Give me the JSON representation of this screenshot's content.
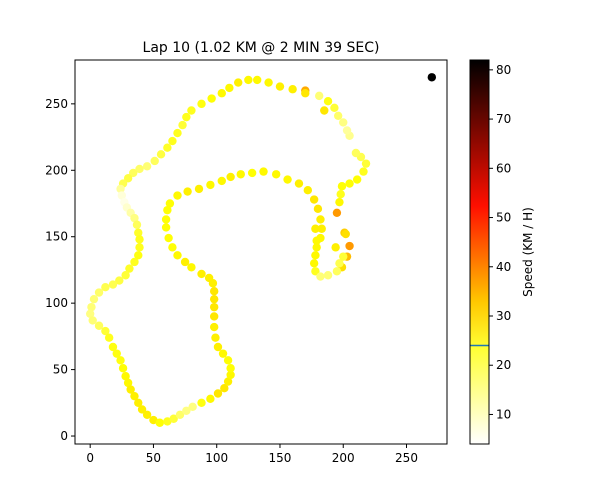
{
  "chart_data": {
    "type": "scatter",
    "title": "Lap 10 (1.02 KM @ 2 MIN 39 SEC)",
    "xlabel": "",
    "ylabel": "",
    "xlim": [
      -12,
      282
    ],
    "ylim": [
      -6,
      283
    ],
    "xticks": [
      0,
      50,
      100,
      150,
      200,
      250
    ],
    "yticks": [
      0,
      50,
      100,
      150,
      200,
      250
    ],
    "grid": false,
    "colormap": "hot_r",
    "colorbar": {
      "label": "Speed (KM / H)",
      "range": [
        4,
        82
      ],
      "ticks": [
        10,
        20,
        30,
        40,
        50,
        60,
        70,
        80
      ],
      "marker_value": 24,
      "marker_color": "#1f77b4"
    },
    "points": [
      [
        270,
        270,
        82
      ],
      [
        205,
        143,
        36
      ],
      [
        203,
        135,
        32
      ],
      [
        201,
        153,
        30
      ],
      [
        195,
        168,
        36
      ],
      [
        199,
        127,
        28
      ],
      [
        170,
        260,
        34
      ],
      [
        202,
        152,
        28
      ],
      [
        194,
        142,
        26
      ],
      [
        170,
        258,
        27
      ],
      [
        185,
        245,
        27
      ],
      [
        178,
        156,
        26
      ],
      [
        179,
        147,
        25
      ],
      [
        205,
        190,
        24
      ],
      [
        211,
        193,
        24
      ],
      [
        216,
        199,
        22
      ],
      [
        218,
        205,
        20
      ],
      [
        214,
        210,
        18
      ],
      [
        210,
        213,
        17
      ],
      [
        205,
        226,
        13
      ],
      [
        203,
        230,
        12
      ],
      [
        200,
        236,
        14
      ],
      [
        196,
        241,
        16
      ],
      [
        193,
        247,
        20
      ],
      [
        188,
        252,
        23
      ],
      [
        181,
        256,
        15
      ],
      [
        160,
        261,
        26
      ],
      [
        150,
        263,
        26
      ],
      [
        141,
        266,
        25
      ],
      [
        132,
        268,
        25
      ],
      [
        125,
        268,
        25
      ],
      [
        117,
        266,
        26
      ],
      [
        110,
        262,
        25
      ],
      [
        104,
        258,
        25
      ],
      [
        96,
        254,
        24
      ],
      [
        88,
        250,
        23
      ],
      [
        80,
        245,
        22
      ],
      [
        76,
        240,
        22
      ],
      [
        73,
        234,
        20
      ],
      [
        69,
        228,
        22
      ],
      [
        65,
        222,
        22
      ],
      [
        61,
        217,
        21
      ],
      [
        56,
        212,
        19
      ],
      [
        51,
        207,
        17
      ],
      [
        45,
        203,
        15
      ],
      [
        39,
        201,
        16
      ],
      [
        34,
        198,
        17
      ],
      [
        30,
        194,
        19
      ],
      [
        26,
        190,
        18
      ],
      [
        24,
        186,
        12
      ],
      [
        25,
        181,
        7
      ],
      [
        27,
        176,
        6
      ],
      [
        29,
        172,
        8
      ],
      [
        32,
        168,
        11
      ],
      [
        35,
        164,
        14
      ],
      [
        37,
        159,
        17
      ],
      [
        38,
        153,
        21
      ],
      [
        39,
        148,
        22
      ],
      [
        39,
        142,
        22
      ],
      [
        38,
        136,
        23
      ],
      [
        35,
        131,
        22
      ],
      [
        31,
        126,
        21
      ],
      [
        28,
        121,
        20
      ],
      [
        23,
        117,
        19
      ],
      [
        18,
        114,
        18
      ],
      [
        12,
        112,
        18
      ],
      [
        7,
        108,
        16
      ],
      [
        3,
        103,
        15
      ],
      [
        1,
        97,
        15
      ],
      [
        0,
        92,
        14
      ],
      [
        2,
        87,
        15
      ],
      [
        7,
        83,
        17
      ],
      [
        12,
        79,
        20
      ],
      [
        15,
        74,
        22
      ],
      [
        18,
        67,
        23
      ],
      [
        21,
        62,
        23
      ],
      [
        24,
        57,
        23
      ],
      [
        26,
        51,
        24
      ],
      [
        28,
        45,
        25
      ],
      [
        30,
        40,
        25
      ],
      [
        32,
        35,
        26
      ],
      [
        35,
        30,
        26
      ],
      [
        38,
        25,
        26
      ],
      [
        41,
        20,
        26
      ],
      [
        45,
        16,
        26
      ],
      [
        50,
        12,
        26
      ],
      [
        55,
        10,
        24
      ],
      [
        61,
        11,
        22
      ],
      [
        66,
        13,
        20
      ],
      [
        71,
        16,
        16
      ],
      [
        76,
        19,
        14
      ],
      [
        81,
        22,
        14
      ],
      [
        88,
        25,
        23
      ],
      [
        95,
        28,
        25
      ],
      [
        101,
        32,
        27
      ],
      [
        106,
        36,
        27
      ],
      [
        109,
        41,
        26
      ],
      [
        111,
        46,
        25
      ],
      [
        111,
        51,
        24
      ],
      [
        109,
        57,
        24
      ],
      [
        105,
        62,
        25
      ],
      [
        101,
        67,
        26
      ],
      [
        99,
        74,
        26
      ],
      [
        98,
        82,
        26
      ],
      [
        98,
        90,
        27
      ],
      [
        98,
        97,
        27
      ],
      [
        98,
        103,
        27
      ],
      [
        98,
        109,
        27
      ],
      [
        97,
        115,
        26
      ],
      [
        94,
        119,
        26
      ],
      [
        88,
        122,
        26
      ],
      [
        80,
        127,
        25
      ],
      [
        75,
        131,
        26
      ],
      [
        69,
        136,
        25
      ],
      [
        65,
        142,
        24
      ],
      [
        62,
        149,
        24
      ],
      [
        60,
        157,
        24
      ],
      [
        60,
        163,
        24
      ],
      [
        61,
        170,
        24
      ],
      [
        63,
        175,
        24
      ],
      [
        69,
        181,
        25
      ],
      [
        77,
        184,
        26
      ],
      [
        86,
        186,
        26
      ],
      [
        95,
        189,
        25
      ],
      [
        104,
        192,
        25
      ],
      [
        111,
        195,
        26
      ],
      [
        119,
        197,
        25
      ],
      [
        128,
        198,
        24
      ],
      [
        137,
        199,
        25
      ],
      [
        147,
        197,
        25
      ],
      [
        156,
        193,
        25
      ],
      [
        165,
        190,
        26
      ],
      [
        172,
        185,
        26
      ],
      [
        177,
        178,
        27
      ],
      [
        180,
        171,
        27
      ],
      [
        182,
        163,
        26
      ],
      [
        183,
        156,
        26
      ],
      [
        182,
        149,
        25
      ],
      [
        179,
        142,
        25
      ],
      [
        178,
        136,
        25
      ],
      [
        177,
        130,
        25
      ],
      [
        178,
        124,
        22
      ],
      [
        182,
        120,
        15
      ],
      [
        188,
        121,
        15
      ],
      [
        195,
        124,
        17
      ],
      [
        197,
        130,
        18
      ],
      [
        200,
        135,
        20
      ],
      [
        197,
        176,
        25
      ],
      [
        198,
        182,
        22
      ],
      [
        199,
        188,
        24
      ]
    ]
  }
}
